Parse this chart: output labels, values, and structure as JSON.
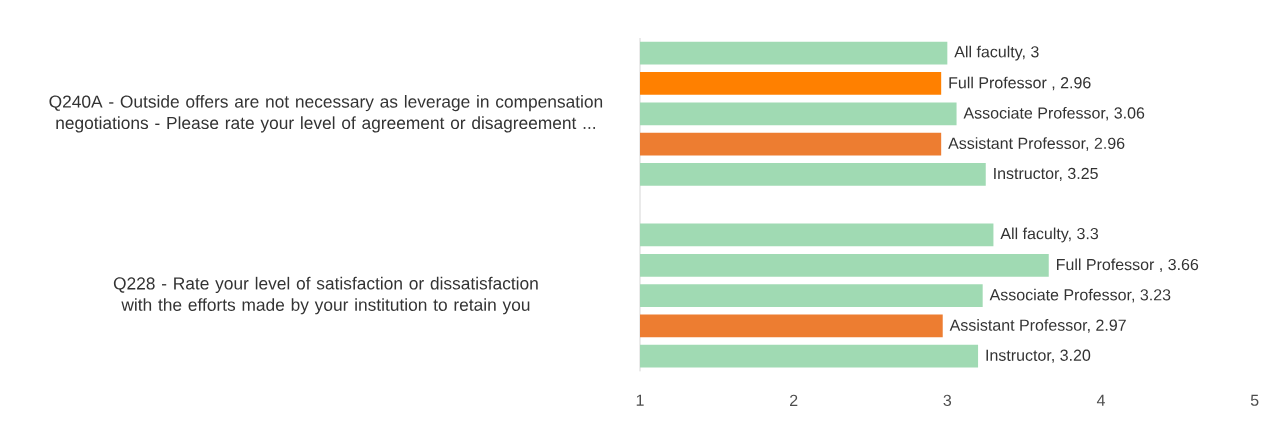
{
  "chart_data": {
    "type": "bar",
    "orientation": "horizontal",
    "categories": [
      null,
      null,
      null,
      null,
      null,
      null,
      null,
      null,
      null,
      null,
      null
    ],
    "values": [
      3,
      2.96,
      3.06,
      2.96,
      3.25,
      null,
      3.3,
      3.66,
      3.23,
      2.97,
      3.2
    ],
    "colors": [
      "#a0dab3",
      "#ff8000",
      "#a0dab3",
      "#ed7d31",
      "#a0dab3",
      null,
      "#a0dab3",
      "#a0dab3",
      "#a0dab3",
      "#ed7d31",
      "#a0dab3"
    ],
    "value_labels": [
      "All faculty, 3",
      "Full Professor , 2.96",
      "Associate Professor, 3.06",
      "Assistant Professor, 2.96",
      "Instructor, 3.25",
      null,
      "All faculty, 3.3",
      "Full Professor , 3.66",
      "Associate Professor, 3.23",
      "Assistant Professor, 2.97",
      "Instructor, 3.20"
    ],
    "annotations": [
      "Q240A - Outside offers are not necessary as leverage in compensation negotiations - Please rate your level of agreement or disagreement ...",
      "Q228 - Rate your level of satisfaction or dissatisfaction with the efforts made by your institution to retain you"
    ],
    "xlim": [
      1,
      5
    ],
    "xticks": [
      1,
      2,
      3,
      4,
      5
    ],
    "grid": false
  }
}
